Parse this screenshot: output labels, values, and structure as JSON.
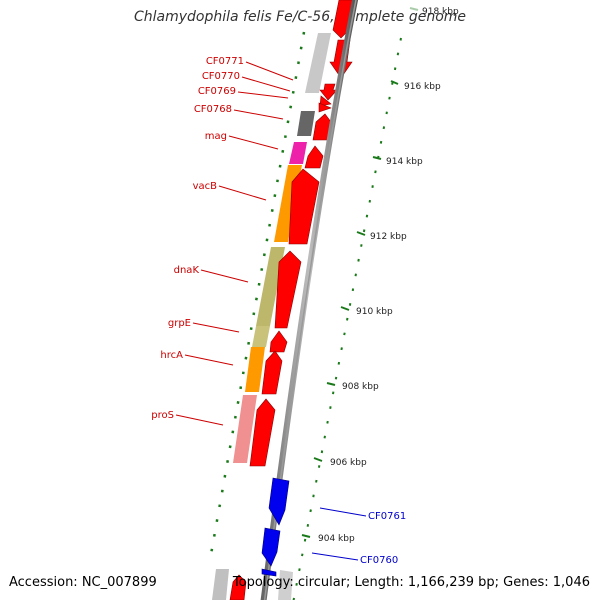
{
  "title": "Chlamydophila felis Fe/C-56, complete genome",
  "accession": "Accession: NC_007899",
  "info": "Topology: circular; Length: 1,166,239 bp; Genes: 1,046",
  "colors": {
    "forward_cds": "#ff0000",
    "reverse_cds": "#0000ff",
    "backbone": "#808080",
    "gc_skew": "#1a7a1a",
    "label_forward": "#cc0000",
    "label_reverse": "#0000cc"
  },
  "ticks": [
    {
      "label": "918 kbp"
    },
    {
      "label": "916 kbp"
    },
    {
      "label": "914 kbp"
    },
    {
      "label": "912 kbp"
    },
    {
      "label": "910 kbp"
    },
    {
      "label": "908 kbp"
    },
    {
      "label": "906 kbp"
    },
    {
      "label": "904 kbp"
    }
  ],
  "gene_labels": [
    {
      "name": "CF0771",
      "strand": "forward"
    },
    {
      "name": "CF0770",
      "strand": "forward"
    },
    {
      "name": "CF0769",
      "strand": "forward"
    },
    {
      "name": "CF0768",
      "strand": "forward"
    },
    {
      "name": "mag",
      "strand": "forward"
    },
    {
      "name": "vacB",
      "strand": "forward"
    },
    {
      "name": "dnaK",
      "strand": "forward"
    },
    {
      "name": "grpE",
      "strand": "forward"
    },
    {
      "name": "hrcA",
      "strand": "forward"
    },
    {
      "name": "proS",
      "strand": "forward"
    },
    {
      "name": "CF0761",
      "strand": "reverse"
    },
    {
      "name": "CF0760",
      "strand": "reverse"
    }
  ]
}
